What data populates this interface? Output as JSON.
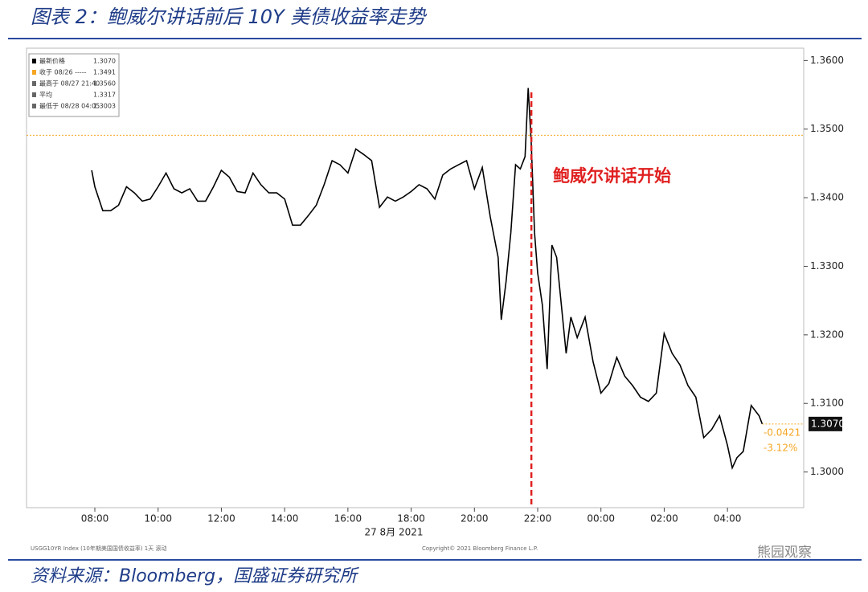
{
  "title": "图表 2：鲍威尔讲话前后 10Y 美债收益率走势",
  "source": "资料来源：Bloomberg，国盛证券研究所",
  "watermark": "熊园观察",
  "chart_data": {
    "type": "line",
    "xlim": [
      5.84,
      30.41
    ],
    "ylim": [
      1.2948,
      1.3618
    ],
    "xticks": [
      {
        "value": 8,
        "label": "08:00"
      },
      {
        "value": 10,
        "label": "10:00"
      },
      {
        "value": 12,
        "label": "12:00"
      },
      {
        "value": 14,
        "label": "14:00"
      },
      {
        "value": 16,
        "label": "16:00"
      },
      {
        "value": 18,
        "label": "18:00"
      },
      {
        "value": 20,
        "label": "20:00"
      },
      {
        "value": 22,
        "label": "22:00"
      },
      {
        "value": 24,
        "label": "00:00"
      },
      {
        "value": 26,
        "label": "02:00"
      },
      {
        "value": 28,
        "label": "04:00"
      }
    ],
    "yticks": [
      {
        "value": 1.3,
        "label": "1.3000"
      },
      {
        "value": 1.31,
        "label": "1.3100"
      },
      {
        "value": 1.32,
        "label": "1.3200"
      },
      {
        "value": 1.33,
        "label": "1.3300"
      },
      {
        "value": 1.34,
        "label": "1.3400"
      },
      {
        "value": 1.35,
        "label": "1.3500"
      },
      {
        "value": 1.36,
        "label": "1.3600"
      }
    ],
    "x_axis_label": "27 8月 2021",
    "footer_left": "USGG10YR Index (10年期美国国债收益率) 1天 滚动",
    "footer_right": "Copyright© 2021 Bloomberg Finance L.P.",
    "series": [
      {
        "name": "最新价格",
        "color": "#000000",
        "x": [
          7.9,
          8,
          8.25,
          8.5,
          8.75,
          9,
          9.25,
          9.5,
          9.75,
          10,
          10.25,
          10.5,
          10.75,
          11,
          11.25,
          11.5,
          11.75,
          12,
          12.25,
          12.5,
          12.75,
          13,
          13.25,
          13.5,
          13.75,
          14,
          14.25,
          14.5,
          14.75,
          15,
          15.25,
          15.5,
          15.75,
          16,
          16.25,
          16.5,
          16.75,
          17,
          17.25,
          17.5,
          17.75,
          18,
          18.25,
          18.5,
          18.75,
          19,
          19.25,
          19.5,
          19.75,
          20,
          20.25,
          20.5,
          20.75,
          20.85,
          21,
          21.15,
          21.3,
          21.45,
          21.6,
          21.7,
          21.8,
          21.9,
          22,
          22.15,
          22.3,
          22.45,
          22.6,
          22.75,
          22.9,
          23.05,
          23.25,
          23.5,
          23.75,
          24,
          24.25,
          24.5,
          24.75,
          25,
          25.25,
          25.5,
          25.75,
          26,
          26.25,
          26.5,
          26.75,
          27,
          27.25,
          27.5,
          27.75,
          28,
          28.15,
          28.3,
          28.5,
          28.75,
          29,
          29.1
        ],
        "values": [
          1.344,
          1.3416,
          1.3381,
          1.3381,
          1.3389,
          1.3416,
          1.3407,
          1.3395,
          1.3398,
          1.3416,
          1.3436,
          1.3413,
          1.3407,
          1.3413,
          1.3395,
          1.3395,
          1.3416,
          1.344,
          1.343,
          1.3409,
          1.3407,
          1.3436,
          1.3419,
          1.3407,
          1.3407,
          1.3398,
          1.336,
          1.336,
          1.3374,
          1.3389,
          1.3419,
          1.3454,
          1.3448,
          1.3436,
          1.3471,
          1.3463,
          1.3454,
          1.3386,
          1.3401,
          1.3395,
          1.3401,
          1.3409,
          1.3419,
          1.3413,
          1.3398,
          1.3433,
          1.3442,
          1.3448,
          1.3454,
          1.3413,
          1.3444,
          1.3372,
          1.3313,
          1.3222,
          1.3278,
          1.3349,
          1.3448,
          1.3442,
          1.346,
          1.356,
          1.3477,
          1.3349,
          1.329,
          1.3243,
          1.315,
          1.3331,
          1.3313,
          1.3243,
          1.3173,
          1.3226,
          1.3196,
          1.3226,
          1.3161,
          1.3115,
          1.3129,
          1.3167,
          1.314,
          1.3126,
          1.3109,
          1.3103,
          1.3115,
          1.3202,
          1.3173,
          1.3156,
          1.3126,
          1.3109,
          1.305,
          1.3062,
          1.3082,
          1.3039,
          1.3006,
          1.3021,
          1.303,
          1.3097,
          1.3082,
          1.307
        ]
      }
    ],
    "reference_line": {
      "value": 1.3491,
      "color": "#f5a623"
    },
    "speech_marker": {
      "x": 21.8,
      "label": "鲍威尔讲话开始",
      "color": "#e02020"
    },
    "last_value_label": "1.3070",
    "change_labels": [
      "-0.0421",
      "-3.12%"
    ],
    "legend_box": [
      {
        "label": "最新价格",
        "value": "1.3070"
      },
      {
        "label": "收于 08/26 -----",
        "value": "1.3491"
      },
      {
        "label": "最高于 08/27 21:40",
        "value": "1.3560"
      },
      {
        "label": "平均",
        "value": "1.3317"
      },
      {
        "label": "最低于 08/28 04:05",
        "value": "1.3003"
      }
    ]
  }
}
